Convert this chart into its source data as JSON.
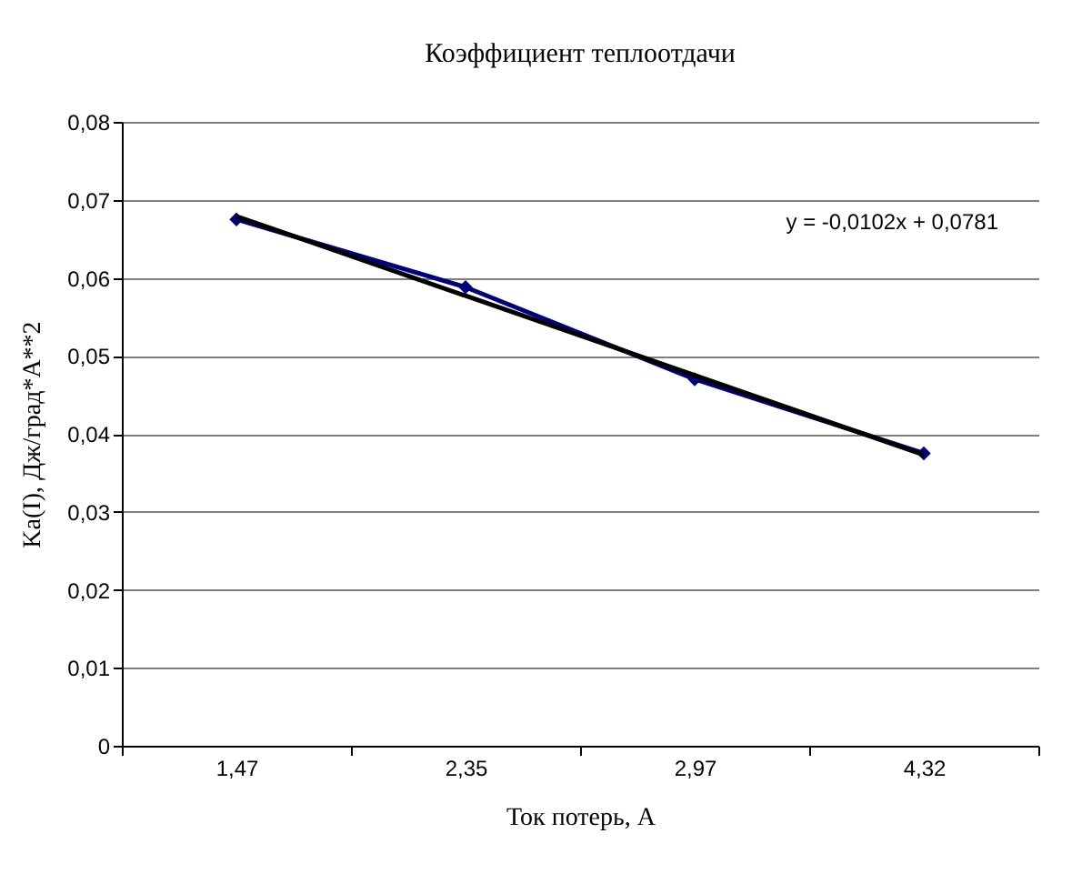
{
  "chart_data": {
    "type": "line",
    "title": "Коэффициент теплоотдачи",
    "xlabel": "Ток потерь, А",
    "ylabel": "Ka(I), Дж/град*А**2",
    "categories": [
      "1,47",
      "2,35",
      "2,97",
      "4,32"
    ],
    "series": [
      {
        "type": "line",
        "color": "#00007f",
        "marker": "diamond",
        "values": [
          0.0675,
          0.0588,
          0.047,
          0.0375
        ]
      },
      {
        "type": "line",
        "color": "#000000",
        "marker": "none",
        "values": [
          0.0679,
          0.0577,
          0.0475,
          0.0373
        ]
      }
    ],
    "ylim": [
      0,
      0.08
    ],
    "yticks": [
      {
        "value": 0,
        "label": "0"
      },
      {
        "value": 0.01,
        "label": "0,01"
      },
      {
        "value": 0.02,
        "label": "0,02"
      },
      {
        "value": 0.03,
        "label": "0,03"
      },
      {
        "value": 0.04,
        "label": "0,04"
      },
      {
        "value": 0.05,
        "label": "0,05"
      },
      {
        "value": 0.06,
        "label": "0,06"
      },
      {
        "value": 0.07,
        "label": "0,07"
      },
      {
        "value": 0.08,
        "label": "0,08"
      }
    ],
    "grid": "y",
    "legend": false,
    "annotations": [
      "y = -0,0102x + 0,0781"
    ]
  }
}
